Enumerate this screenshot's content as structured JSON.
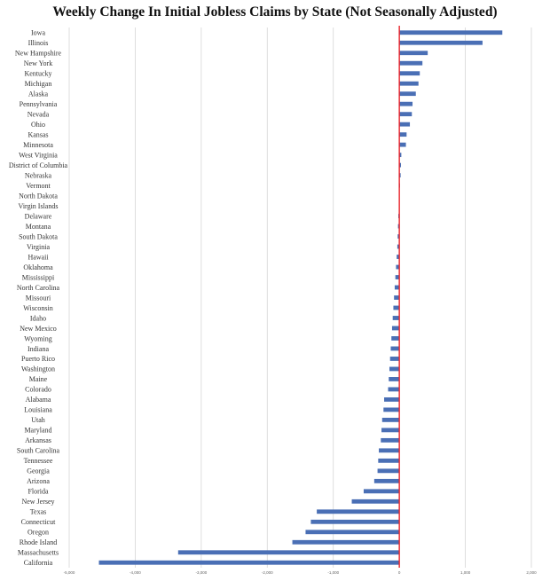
{
  "chart_data": {
    "type": "bar",
    "orientation": "horizontal",
    "title": "Weekly Change In Initial Jobless Claims by State (Not Seasonally Adjusted)",
    "xlabel": "",
    "ylabel": "",
    "xlim": [
      -5000,
      2000
    ],
    "xticks": [
      -5000,
      -4000,
      -3000,
      -2000,
      -1000,
      0,
      1000,
      2000
    ],
    "xtick_labels": [
      "-5,000",
      "-4,000",
      "-3,000",
      "-2,000",
      "-1,000",
      "0",
      "1,000",
      "2,000"
    ],
    "grid": "vertical",
    "legend": "none",
    "categories": [
      "Iowa",
      "Illinois",
      "New Hampshire",
      "New York",
      "Kentucky",
      "Michigan",
      "Alaska",
      "Pennsylvania",
      "Nevada",
      "Ohio",
      "Kansas",
      "Minnesota",
      "West Virginia",
      "District of Columbia",
      "Nebraska",
      "Vermont",
      "North Dakota",
      "Virgin Islands",
      "Delaware",
      "Montana",
      "South Dakota",
      "Virginia",
      "Hawaii",
      "Oklahoma",
      "Mississippi",
      "North Carolina",
      "Missouri",
      "Wisconsin",
      "Idaho",
      "New Mexico",
      "Wyoming",
      "Indiana",
      "Puerto Rico",
      "Washington",
      "Maine",
      "Colorado",
      "Alabama",
      "Louisiana",
      "Utah",
      "Maryland",
      "Arkansas",
      "South Carolina",
      "Tennessee",
      "Georgia",
      "Arizona",
      "Florida",
      "New Jersey",
      "Texas",
      "Connecticut",
      "Oregon",
      "Rhode Island",
      "Massachusetts",
      "California"
    ],
    "values": [
      1560,
      1260,
      430,
      350,
      310,
      290,
      250,
      200,
      190,
      160,
      110,
      100,
      30,
      25,
      20,
      10,
      0,
      0,
      -15,
      -20,
      -25,
      -30,
      -40,
      -50,
      -60,
      -70,
      -80,
      -90,
      -100,
      -110,
      -120,
      -130,
      -140,
      -150,
      -160,
      -170,
      -230,
      -240,
      -260,
      -270,
      -280,
      -310,
      -320,
      -330,
      -380,
      -540,
      -720,
      -1250,
      -1340,
      -1420,
      -1620,
      -3350,
      -4550
    ],
    "colors": {
      "bar": "#4a6fb5",
      "zero_line": "#e8232a",
      "grid": "#d6d6d6"
    }
  }
}
